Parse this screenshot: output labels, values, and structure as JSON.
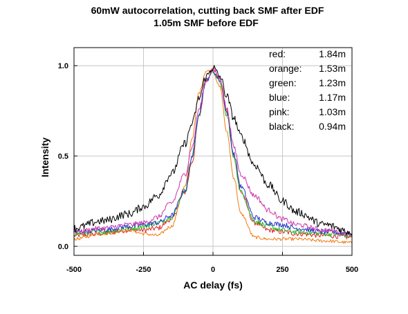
{
  "chart_data": {
    "type": "line",
    "title": "60mW autocorrelation, cutting back SMF after EDF",
    "subtitle": "1.05m SMF before EDF",
    "xlabel": "AC delay (fs)",
    "ylabel": "Intensity",
    "xlim": [
      -500,
      500
    ],
    "ylim": [
      -0.05,
      1.1
    ],
    "xticks": [
      -500,
      -250,
      0,
      250,
      500
    ],
    "yticks": [
      0.0,
      0.5,
      1.0
    ],
    "xtick_labels": [
      "-500",
      "-250",
      "0",
      "250",
      "500"
    ],
    "ytick_labels": [
      "0.0",
      "0.5",
      "1.0"
    ],
    "grid": true,
    "legend_placement": "top-right",
    "series": [
      {
        "name": "red",
        "length": "1.84m",
        "color": "#dd2222",
        "x": [
          -500,
          -400,
          -300,
          -250,
          -200,
          -150,
          -100,
          -75,
          -50,
          -25,
          0,
          25,
          50,
          75,
          100,
          150,
          200,
          250,
          300,
          400,
          500
        ],
        "y": [
          0.06,
          0.07,
          0.09,
          0.09,
          0.1,
          0.15,
          0.3,
          0.47,
          0.72,
          0.92,
          0.98,
          0.93,
          0.75,
          0.5,
          0.3,
          0.13,
          0.09,
          0.08,
          0.07,
          0.06,
          0.05
        ]
      },
      {
        "name": "orange",
        "length": "1.53m",
        "color": "#f07a10",
        "x": [
          -500,
          -400,
          -300,
          -250,
          -200,
          -150,
          -100,
          -75,
          -50,
          -25,
          0,
          25,
          50,
          75,
          100,
          150,
          200,
          250,
          300,
          400,
          500
        ],
        "y": [
          0.04,
          0.07,
          0.09,
          0.07,
          0.06,
          0.11,
          0.33,
          0.6,
          0.85,
          0.97,
          0.97,
          0.88,
          0.63,
          0.38,
          0.18,
          0.05,
          0.04,
          0.04,
          0.04,
          0.03,
          0.02
        ]
      },
      {
        "name": "green",
        "length": "1.23m",
        "color": "#22bb22",
        "x": [
          -500,
          -400,
          -300,
          -250,
          -200,
          -150,
          -100,
          -75,
          -50,
          -25,
          0,
          25,
          50,
          75,
          100,
          150,
          200,
          250,
          300,
          400,
          500
        ],
        "y": [
          0.07,
          0.08,
          0.1,
          0.11,
          0.13,
          0.16,
          0.31,
          0.49,
          0.73,
          0.92,
          0.97,
          0.91,
          0.72,
          0.49,
          0.3,
          0.14,
          0.11,
          0.09,
          0.08,
          0.07,
          0.06
        ]
      },
      {
        "name": "blue",
        "length": "1.17m",
        "color": "#2233cc",
        "x": [
          -500,
          -400,
          -300,
          -250,
          -200,
          -150,
          -100,
          -75,
          -50,
          -25,
          0,
          25,
          50,
          75,
          100,
          150,
          200,
          250,
          300,
          400,
          500
        ],
        "y": [
          0.08,
          0.09,
          0.11,
          0.12,
          0.13,
          0.17,
          0.31,
          0.5,
          0.74,
          0.92,
          0.97,
          0.92,
          0.74,
          0.51,
          0.33,
          0.16,
          0.13,
          0.12,
          0.1,
          0.08,
          0.07
        ]
      },
      {
        "name": "pink",
        "length": "1.03m",
        "color": "#cc33aa",
        "x": [
          -500,
          -400,
          -300,
          -250,
          -200,
          -150,
          -100,
          -75,
          -50,
          -25,
          0,
          25,
          50,
          75,
          100,
          150,
          200,
          250,
          300,
          400,
          500
        ],
        "y": [
          0.08,
          0.1,
          0.12,
          0.13,
          0.16,
          0.24,
          0.4,
          0.55,
          0.76,
          0.92,
          0.98,
          0.93,
          0.76,
          0.55,
          0.4,
          0.28,
          0.2,
          0.15,
          0.12,
          0.09,
          0.07
        ]
      },
      {
        "name": "black",
        "length": "0.94m",
        "color": "#000000",
        "x": [
          -500,
          -400,
          -300,
          -250,
          -200,
          -150,
          -100,
          -75,
          -50,
          -25,
          0,
          25,
          50,
          75,
          100,
          150,
          200,
          250,
          300,
          400,
          500
        ],
        "y": [
          0.1,
          0.14,
          0.18,
          0.22,
          0.28,
          0.4,
          0.57,
          0.68,
          0.82,
          0.94,
          0.99,
          0.94,
          0.83,
          0.71,
          0.61,
          0.45,
          0.34,
          0.25,
          0.19,
          0.12,
          0.08
        ]
      }
    ]
  }
}
